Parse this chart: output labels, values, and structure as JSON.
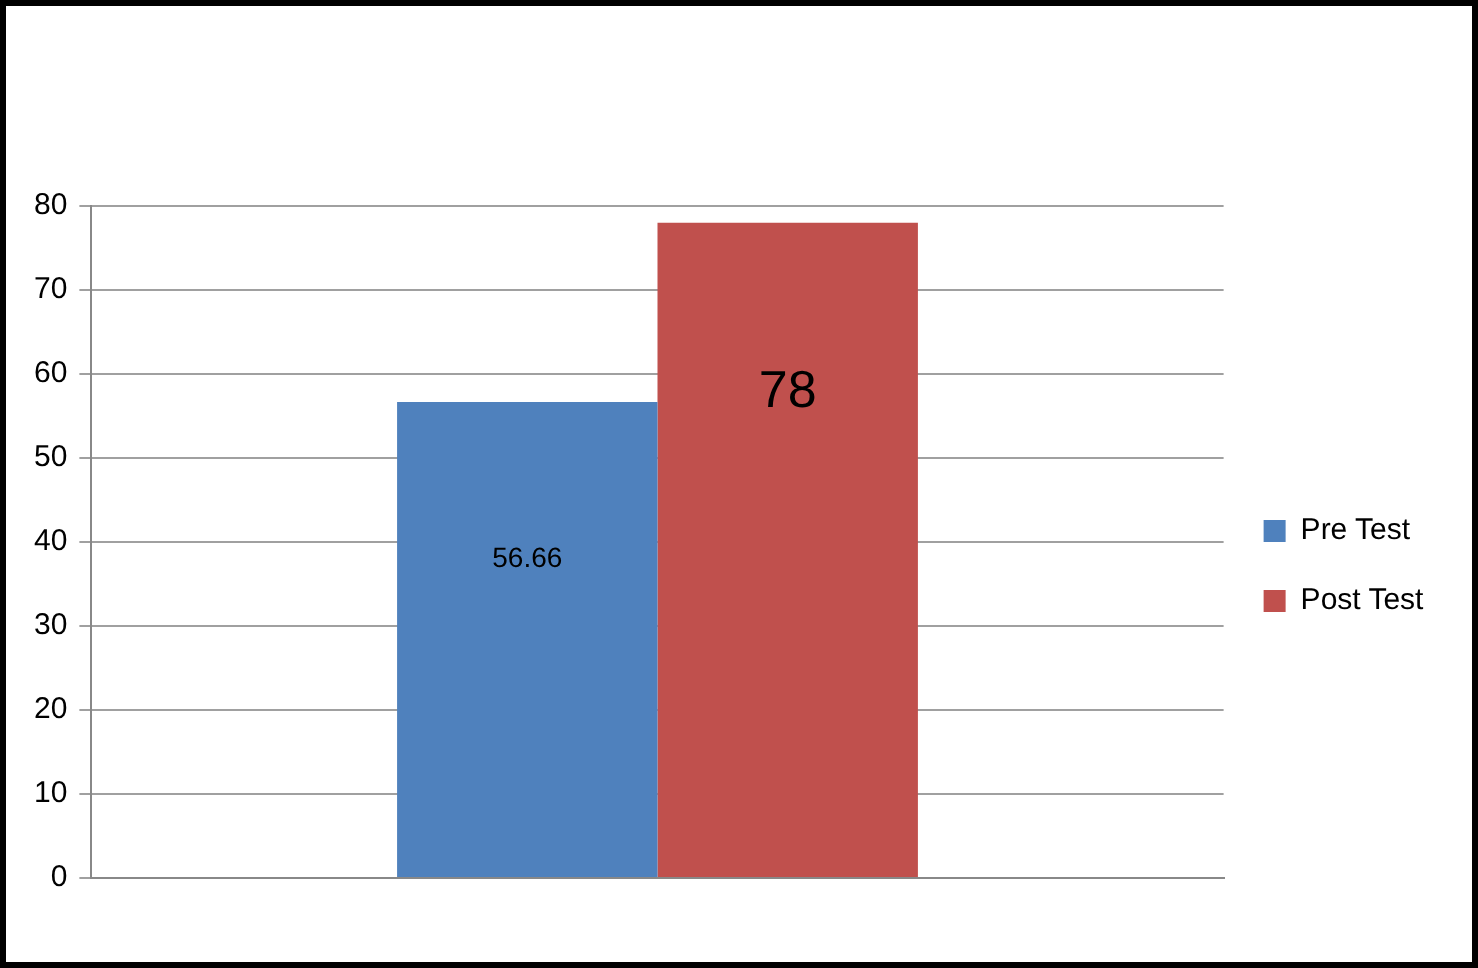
{
  "chart_data": {
    "type": "bar",
    "categories": [
      null
    ],
    "series": [
      {
        "name": "Pre Test",
        "color": "#4f81bd",
        "values": [
          56.66
        ]
      },
      {
        "name": "Post Test",
        "color": "#c0504d",
        "values": [
          78
        ]
      }
    ],
    "ylim": [
      0,
      80
    ],
    "yticks": [
      0,
      10,
      20,
      30,
      40,
      50,
      60,
      70,
      80
    ],
    "grid": "y",
    "legend": "right",
    "data_labels": true
  }
}
